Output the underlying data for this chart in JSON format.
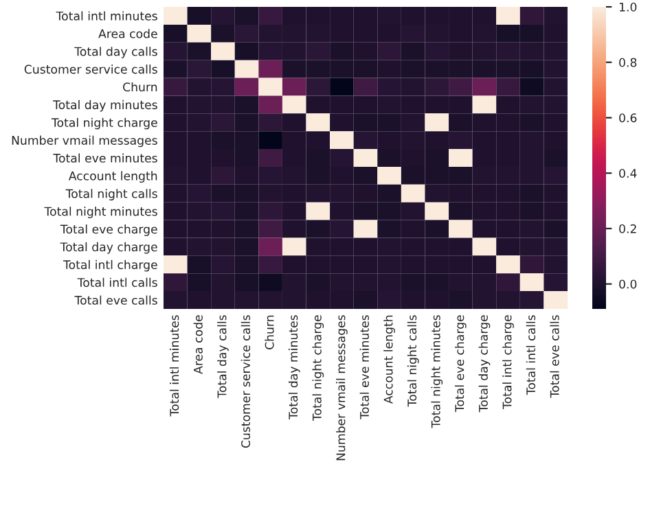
{
  "chart_data": {
    "type": "heatmap",
    "categories": [
      "Total intl minutes",
      "Area code",
      "Total day calls",
      "Customer service calls",
      "Churn",
      "Total day minutes",
      "Total night charge",
      "Number vmail messages",
      "Total eve minutes",
      "Account length",
      "Total night calls",
      "Total night minutes",
      "Total eve charge",
      "Total day charge",
      "Total intl charge",
      "Total intl calls",
      "Total eve calls"
    ],
    "y_categories": [
      "Total intl minutes",
      "Area code",
      "Total day calls",
      "Customer service calls",
      "Churn",
      "Total day minutes",
      "Total night charge",
      "Number vmail messages",
      "Total eve minutes",
      "Account length",
      "Total night calls",
      "Total night minutes",
      "Total eve charge",
      "Total day charge",
      "Total intl charge",
      "Total intl calls",
      "Total eve calls"
    ],
    "cells": [
      [
        1.0,
        -0.02,
        0.02,
        -0.01,
        0.07,
        0.0,
        0.0,
        0.0,
        0.0,
        0.01,
        0.0,
        0.0,
        0.0,
        0.0,
        1.0,
        0.05,
        0.01
      ],
      [
        -0.02,
        1.0,
        -0.01,
        0.03,
        0.01,
        0.01,
        0.01,
        0.0,
        0.0,
        0.0,
        0.02,
        0.01,
        0.0,
        0.01,
        -0.02,
        -0.02,
        0.0
      ],
      [
        0.02,
        -0.01,
        1.0,
        -0.02,
        0.02,
        0.01,
        0.03,
        -0.01,
        0.0,
        0.04,
        -0.01,
        0.02,
        0.0,
        0.01,
        0.02,
        0.01,
        0.01
      ],
      [
        -0.01,
        0.03,
        -0.02,
        1.0,
        0.21,
        -0.01,
        -0.01,
        -0.01,
        -0.01,
        0.0,
        -0.01,
        -0.01,
        -0.01,
        -0.01,
        -0.01,
        -0.02,
        0.01
      ],
      [
        0.07,
        0.01,
        0.02,
        0.21,
        1.0,
        0.21,
        0.04,
        -0.09,
        0.09,
        0.02,
        0.01,
        0.04,
        0.09,
        0.21,
        0.07,
        -0.05,
        0.01
      ],
      [
        0.0,
        0.01,
        0.01,
        -0.01,
        0.21,
        1.0,
        0.0,
        0.0,
        0.0,
        0.01,
        0.0,
        0.0,
        0.0,
        1.0,
        0.0,
        0.01,
        0.01
      ],
      [
        0.0,
        0.01,
        0.03,
        -0.01,
        0.04,
        0.0,
        1.0,
        0.0,
        -0.01,
        -0.01,
        0.01,
        1.0,
        -0.01,
        0.0,
        0.0,
        -0.01,
        0.0
      ],
      [
        0.0,
        0.0,
        -0.01,
        -0.01,
        -0.09,
        0.0,
        0.0,
        1.0,
        0.02,
        0.0,
        0.01,
        0.0,
        0.02,
        0.0,
        0.0,
        0.01,
        0.0
      ],
      [
        0.0,
        0.0,
        0.0,
        -0.01,
        0.09,
        0.0,
        -0.01,
        0.02,
        1.0,
        -0.01,
        0.0,
        -0.01,
        1.0,
        0.0,
        0.0,
        0.01,
        -0.01
      ],
      [
        0.01,
        0.0,
        0.04,
        0.0,
        0.02,
        0.01,
        -0.01,
        0.0,
        -0.01,
        1.0,
        -0.01,
        -0.01,
        -0.01,
        0.01,
        0.01,
        0.01,
        0.02
      ],
      [
        0.0,
        0.02,
        -0.01,
        -0.01,
        0.01,
        0.0,
        0.01,
        0.01,
        0.0,
        -0.01,
        1.0,
        0.01,
        0.0,
        0.0,
        0.0,
        -0.01,
        0.0
      ],
      [
        0.0,
        0.01,
        0.02,
        -0.01,
        0.04,
        0.0,
        1.0,
        0.0,
        -0.01,
        -0.01,
        0.01,
        1.0,
        -0.01,
        0.0,
        0.0,
        -0.01,
        0.0
      ],
      [
        0.0,
        0.0,
        0.0,
        -0.01,
        0.09,
        0.0,
        -0.01,
        0.02,
        1.0,
        -0.01,
        0.0,
        -0.01,
        1.0,
        0.0,
        0.0,
        0.01,
        -0.01
      ],
      [
        0.0,
        0.01,
        0.01,
        -0.01,
        0.21,
        1.0,
        0.0,
        0.0,
        0.0,
        0.01,
        0.0,
        0.0,
        0.0,
        1.0,
        0.0,
        0.01,
        0.01
      ],
      [
        1.0,
        -0.02,
        0.02,
        -0.01,
        0.07,
        0.0,
        0.0,
        0.0,
        0.0,
        0.01,
        0.0,
        0.0,
        0.0,
        0.0,
        1.0,
        0.05,
        0.01
      ],
      [
        0.05,
        -0.02,
        0.01,
        -0.02,
        -0.05,
        0.01,
        -0.01,
        0.01,
        0.01,
        0.01,
        -0.01,
        -0.01,
        0.01,
        0.01,
        0.05,
        1.0,
        0.02
      ],
      [
        0.01,
        0.0,
        0.01,
        0.01,
        0.01,
        0.01,
        0.0,
        0.0,
        -0.01,
        0.02,
        0.0,
        0.0,
        -0.01,
        0.01,
        0.01,
        0.02,
        1.0
      ]
    ],
    "clim": [
      -0.09,
      1.0
    ],
    "cticks": [
      {
        "value": 0.0,
        "label": "0.0"
      },
      {
        "value": 0.2,
        "label": "0.2"
      },
      {
        "value": 0.4,
        "label": "0.4"
      },
      {
        "value": 0.6,
        "label": "0.6"
      },
      {
        "value": 0.8,
        "label": "0.8"
      },
      {
        "value": 1.0,
        "label": "1.0"
      }
    ]
  }
}
